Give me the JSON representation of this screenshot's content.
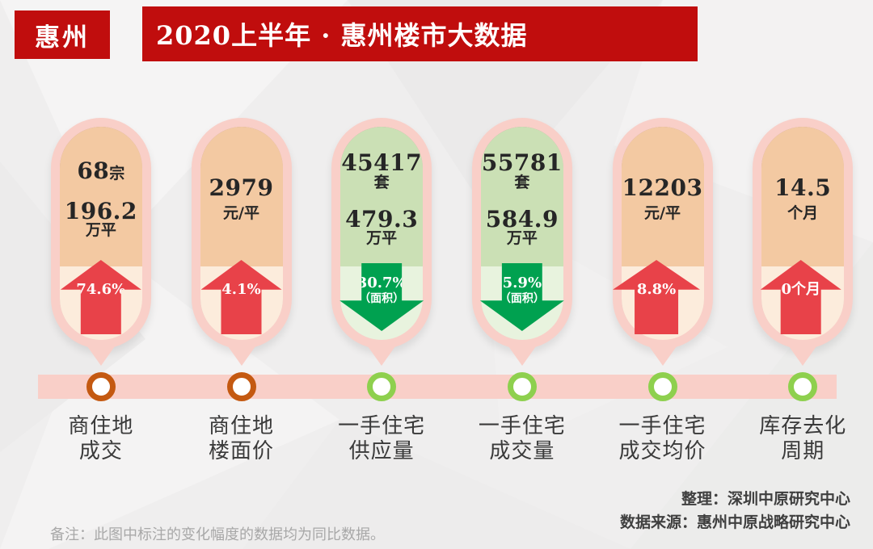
{
  "header": {
    "region": "惠州",
    "title": "2020上半年 · 惠州楼市大数据"
  },
  "cards": [
    {
      "theme": "peach",
      "dot_color": "orange",
      "values": [
        {
          "main": "68",
          "suffix": "宗"
        },
        {
          "main": "196.2",
          "suffix": "万平"
        }
      ],
      "arrow": {
        "direction": "up",
        "label": "74.6%",
        "note": ""
      },
      "label": [
        "商住地",
        "成交"
      ]
    },
    {
      "theme": "peach",
      "dot_color": "orange",
      "values": [
        {
          "main": "2979",
          "suffix": ""
        },
        {
          "main": "",
          "suffix": "元/平"
        }
      ],
      "arrow": {
        "direction": "up",
        "label": "4.1%",
        "note": ""
      },
      "label": [
        "商住地",
        "楼面价"
      ]
    },
    {
      "theme": "green",
      "dot_color": "green",
      "values": [
        {
          "main": "45417",
          "suffix": "套"
        },
        {
          "main": "479.3",
          "suffix": "万平"
        }
      ],
      "arrow": {
        "direction": "down",
        "label": "30.7%",
        "note": "（面积）"
      },
      "label": [
        "一手住宅",
        "供应量"
      ]
    },
    {
      "theme": "green",
      "dot_color": "green",
      "values": [
        {
          "main": "55781",
          "suffix": "套"
        },
        {
          "main": "584.9",
          "suffix": "万平"
        }
      ],
      "arrow": {
        "direction": "down",
        "label": "5.9%",
        "note": "（面积）"
      },
      "label": [
        "一手住宅",
        "成交量"
      ]
    },
    {
      "theme": "peach",
      "dot_color": "green",
      "values": [
        {
          "main": "12203",
          "suffix": ""
        },
        {
          "main": "",
          "suffix": "元/平"
        }
      ],
      "arrow": {
        "direction": "up",
        "label": "8.8%",
        "note": ""
      },
      "label": [
        "一手住宅",
        "成交均价"
      ]
    },
    {
      "theme": "peach",
      "dot_color": "green",
      "values": [
        {
          "main": "14.5",
          "suffix": ""
        },
        {
          "main": "",
          "suffix": "个月"
        }
      ],
      "arrow": {
        "direction": "up",
        "label": "0个月",
        "note": ""
      },
      "label": [
        "库存去化",
        "周期"
      ]
    }
  ],
  "footer": {
    "note": "备注：此图中标注的变化幅度的数据均为同比数据。",
    "credit_line1": "整理：深圳中原研究中心",
    "credit_line2": "数据来源：惠州中原战略研究中心"
  },
  "colors": {
    "brand_red": "#c00d0d",
    "capsule_pink": "#f9cfc8",
    "peach_top": "#f3c9a2",
    "peach_bottom": "#fcecdc",
    "green_top": "#cbe0b5",
    "green_bottom": "#e8f3de",
    "arrow_up_red": "#e84249",
    "arrow_down_green": "#00a150",
    "dot_orange": "#c45911",
    "dot_green": "#8ed04e"
  },
  "chart_data": {
    "type": "table",
    "title": "2020上半年 · 惠州楼市大数据",
    "categories": [
      "商住地成交",
      "商住地楼面价",
      "一手住宅供应量",
      "一手住宅成交量",
      "一手住宅成交均价",
      "库存去化周期"
    ],
    "values": [
      {
        "metric": "商住地成交",
        "value": "68宗 / 196.2万平",
        "yoy_change": "+74.6%"
      },
      {
        "metric": "商住地楼面价",
        "value": "2979元/平",
        "yoy_change": "+4.1%"
      },
      {
        "metric": "一手住宅供应量",
        "value": "45417套 / 479.3万平",
        "yoy_change": "-30.7%（面积）"
      },
      {
        "metric": "一手住宅成交量",
        "value": "55781套 / 584.9万平",
        "yoy_change": "-5.9%（面积）"
      },
      {
        "metric": "一手住宅成交均价",
        "value": "12203元/平",
        "yoy_change": "+8.8%"
      },
      {
        "metric": "库存去化周期",
        "value": "14.5个月",
        "yoy_change": "+0个月"
      }
    ],
    "legend_position": "none",
    "grid": false
  }
}
